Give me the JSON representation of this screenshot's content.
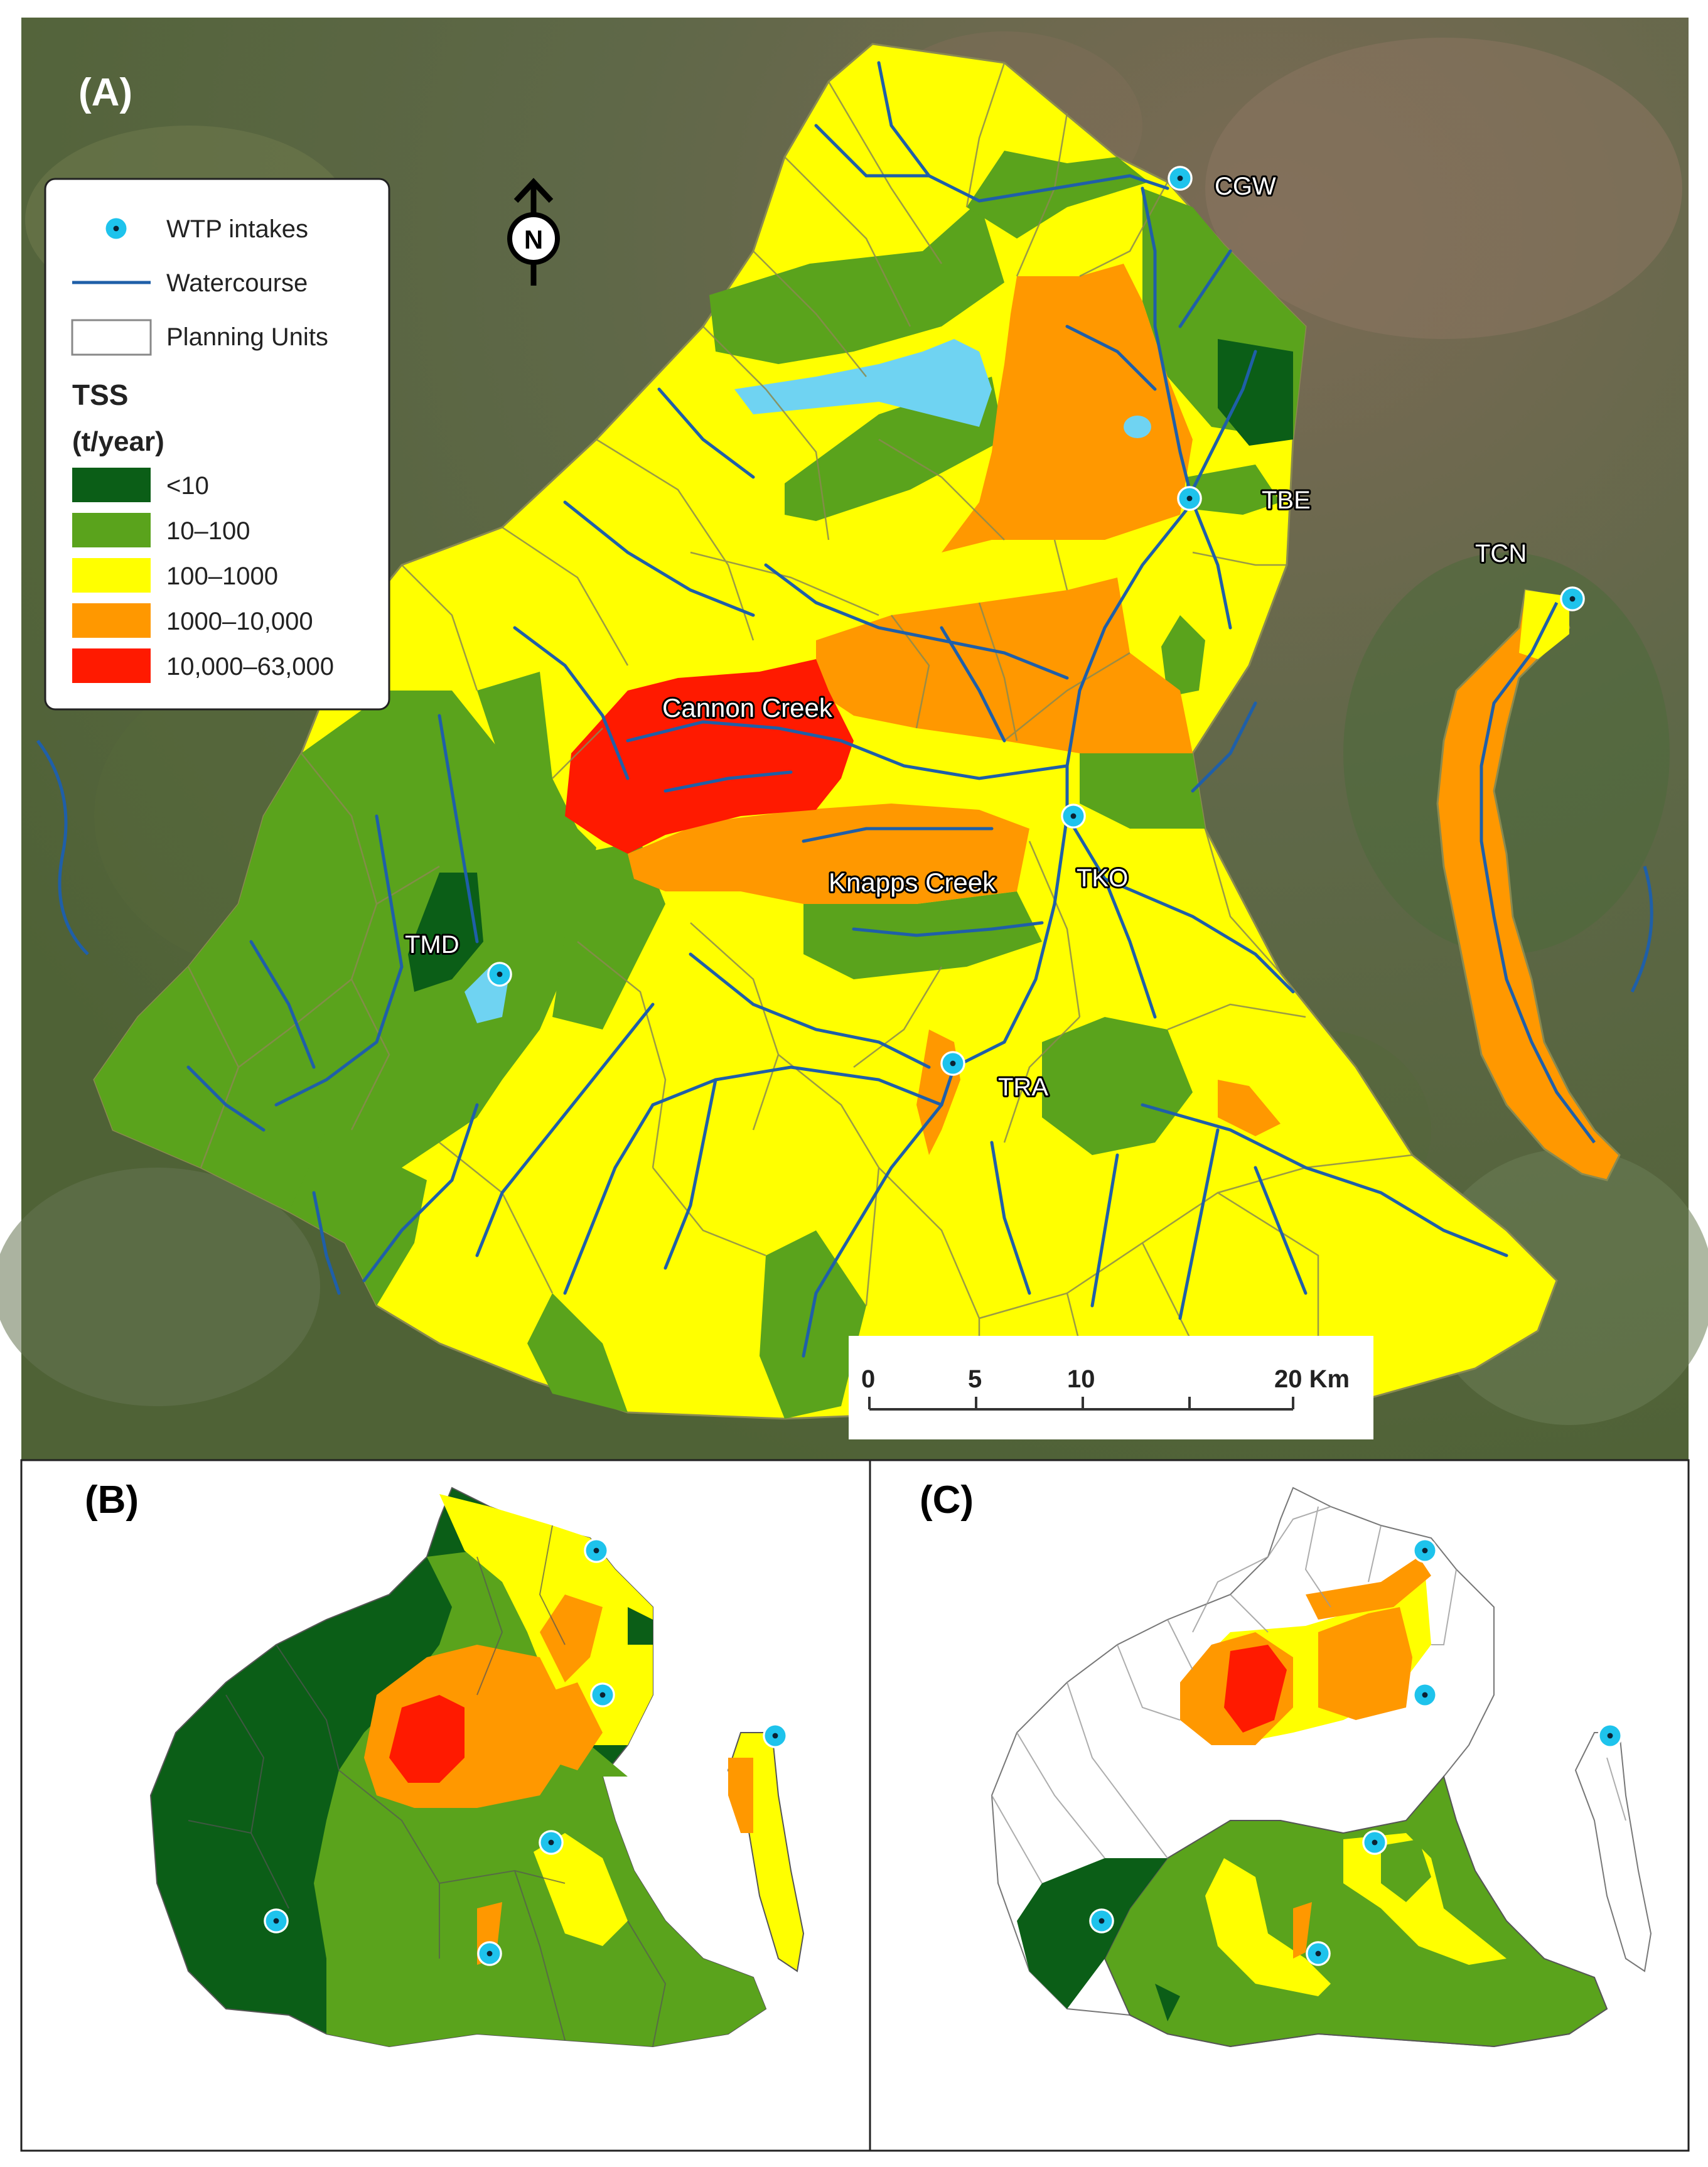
{
  "panels": {
    "a": {
      "label": "(A)"
    },
    "b": {
      "label": "(B)"
    },
    "c": {
      "label": "(C)"
    }
  },
  "north_arrow": {
    "letter": "N"
  },
  "legend": {
    "intakes_label": "WTP intakes",
    "watercourse_label": "Watercourse",
    "planning_units_label": "Planning Units",
    "tss_title": "TSS",
    "tss_unit": "(t/year)",
    "classes": [
      {
        "label": "<10",
        "color": "#0b5e17"
      },
      {
        "label": "10–100",
        "color": "#5aa31c"
      },
      {
        "label": "100–1000",
        "color": "#ffff00"
      },
      {
        "label": "1000–10,000",
        "color": "#ff9800"
      },
      {
        "label": "10,000–63,000",
        "color": "#ff1a00"
      }
    ]
  },
  "place_labels": {
    "cannon": "Cannon Creek",
    "knapps": "Knapps Creek",
    "cgw": "CGW",
    "tbe": "TBE",
    "tcn": "TCN",
    "tko": "TKO",
    "tmd": "TMD",
    "tra": "TRA"
  },
  "scale_bar": {
    "t0": "0",
    "t5": "5",
    "t10": "10",
    "t20": "20 Km"
  },
  "colors": {
    "satellite": "#5f6b45",
    "water": "#6fd3f2",
    "river": "#1f5fa8",
    "intake": "#1ec3ec",
    "unit_border": "#8a8a50"
  }
}
